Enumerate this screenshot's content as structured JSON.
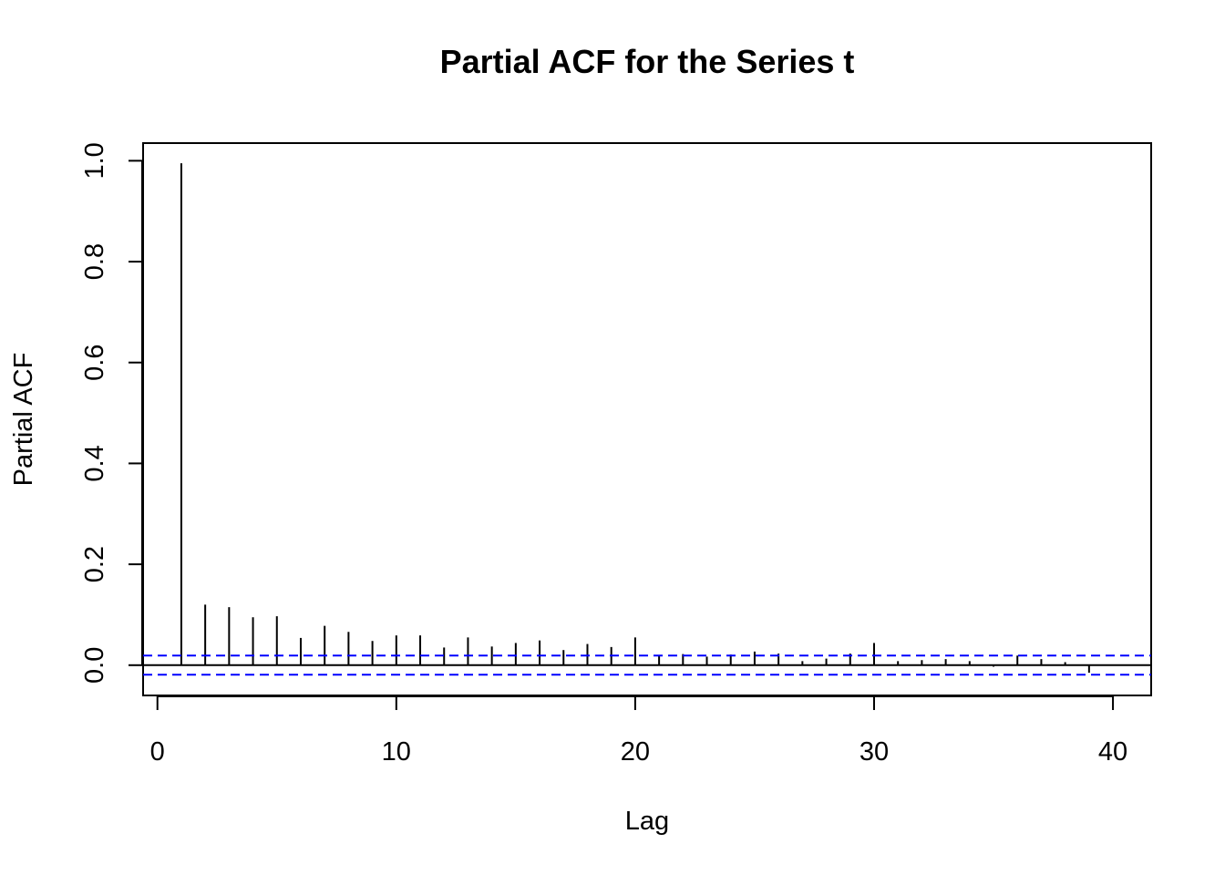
{
  "chart_data": {
    "type": "bar",
    "title": "Partial ACF for the Series t",
    "xlabel": "Lag",
    "ylabel": "Partial ACF",
    "xlim": [
      -0.6,
      41.6
    ],
    "ylim": [
      -0.06,
      1.035
    ],
    "x_ticks": [
      0,
      10,
      20,
      30,
      40
    ],
    "y_ticks": [
      0.0,
      0.2,
      0.4,
      0.6,
      0.8,
      1.0
    ],
    "x_tick_labels": [
      "0",
      "10",
      "20",
      "30",
      "40"
    ],
    "y_tick_labels": [
      "0.0",
      "0.2",
      "0.4",
      "0.6",
      "0.8",
      "1.0"
    ],
    "lags": [
      1,
      2,
      3,
      4,
      5,
      6,
      7,
      8,
      9,
      10,
      11,
      12,
      13,
      14,
      15,
      16,
      17,
      18,
      19,
      20,
      21,
      22,
      23,
      24,
      25,
      26,
      27,
      28,
      29,
      30,
      31,
      32,
      33,
      34,
      35,
      36,
      37,
      38,
      39
    ],
    "values": [
      0.995,
      0.12,
      0.115,
      0.095,
      0.097,
      0.054,
      0.078,
      0.066,
      0.048,
      0.059,
      0.059,
      0.035,
      0.055,
      0.037,
      0.044,
      0.049,
      0.03,
      0.042,
      0.036,
      0.055,
      0.019,
      0.022,
      0.017,
      0.021,
      0.027,
      0.023,
      0.008,
      0.013,
      0.023,
      0.044,
      0.008,
      0.01,
      0.012,
      0.008,
      -0.003,
      0.019,
      0.012,
      0.006,
      -0.015
    ],
    "confidence_bound": 0.019,
    "colors": {
      "spikes": "#000000",
      "confidence": "#0000ff",
      "zero_line": "#000000"
    },
    "grid": false,
    "legend": "none"
  }
}
